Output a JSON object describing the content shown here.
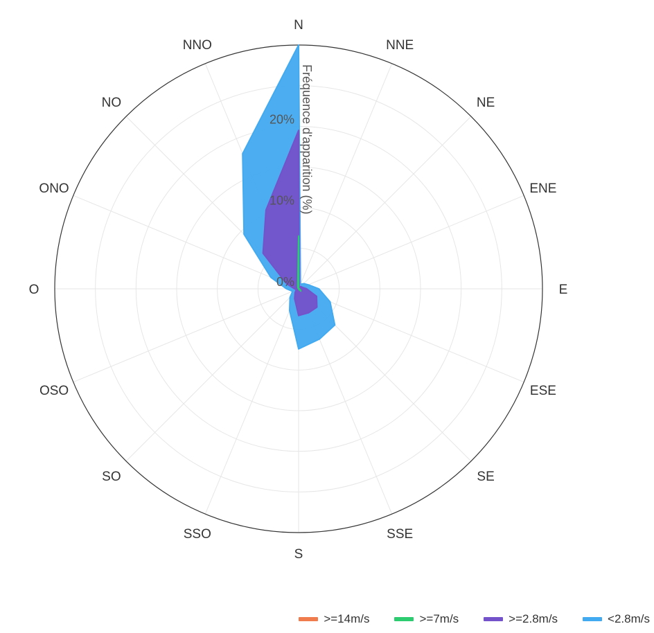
{
  "chart_data": {
    "type": "radar",
    "directions": [
      "N",
      "NNE",
      "NE",
      "ENE",
      "E",
      "ESE",
      "SE",
      "SSE",
      "S",
      "SSO",
      "SO",
      "OSO",
      "O",
      "ONO",
      "NO",
      "NNO"
    ],
    "ylabel": "Fréquence d'apparition (%)",
    "r_ticks": [
      "0%",
      "10%",
      "20%"
    ],
    "rlim": [
      0,
      30
    ],
    "grid": true,
    "legend_position": "bottom-right",
    "stacked": true,
    "series": [
      {
        "name": ">=14m/s",
        "color": "#f07b4c",
        "values": [
          0,
          0,
          0,
          0,
          0,
          0,
          0,
          0,
          0,
          0,
          0,
          0,
          0,
          0,
          0,
          0
        ]
      },
      {
        "name": ">=7m/s",
        "color": "#2ecc71",
        "values": [
          6.5,
          0,
          0,
          0,
          0.1,
          0.2,
          0.4,
          0.1,
          0,
          0,
          0,
          0,
          0,
          0,
          0.1,
          0.3
        ]
      },
      {
        "name": ">=2.8m/s",
        "color": "#7452c9",
        "values": [
          19.5,
          0.2,
          0.4,
          0.5,
          1.0,
          2.4,
          3.2,
          3.2,
          3.3,
          1.3,
          0.6,
          0.3,
          0.5,
          1.6,
          6.2,
          10.5
        ]
      },
      {
        "name": "<2.8m/s",
        "color": "#42aaf0",
        "values": [
          30,
          0.6,
          0.9,
          1.3,
          2.5,
          4.2,
          6.3,
          6.7,
          7.4,
          2.9,
          1.5,
          0.8,
          1.5,
          3.7,
          9.5,
          18
        ]
      }
    ]
  }
}
